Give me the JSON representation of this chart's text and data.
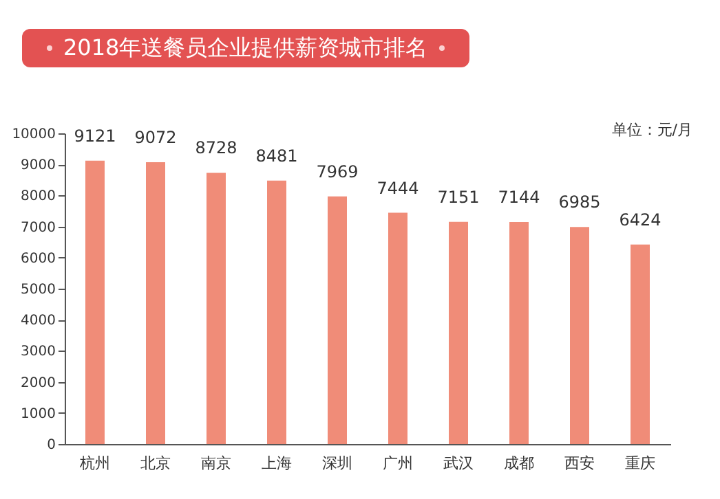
{
  "chart_data": {
    "type": "bar",
    "title": "2018年送餐员企业提供薪资城市排名",
    "annotations": [
      "单位：元/月"
    ],
    "categories": [
      "杭州",
      "北京",
      "南京",
      "上海",
      "深圳",
      "广州",
      "武汉",
      "成都",
      "西安",
      "重庆"
    ],
    "values": [
      9121,
      9072,
      8728,
      8481,
      7969,
      7444,
      7151,
      7144,
      6985,
      6424
    ],
    "color": "#f08c78",
    "ylim": [
      0,
      10000
    ],
    "yticks": [
      0,
      1000,
      2000,
      3000,
      4000,
      5000,
      6000,
      7000,
      8000,
      9000,
      10000
    ],
    "data_labels": true,
    "grid": false
  }
}
